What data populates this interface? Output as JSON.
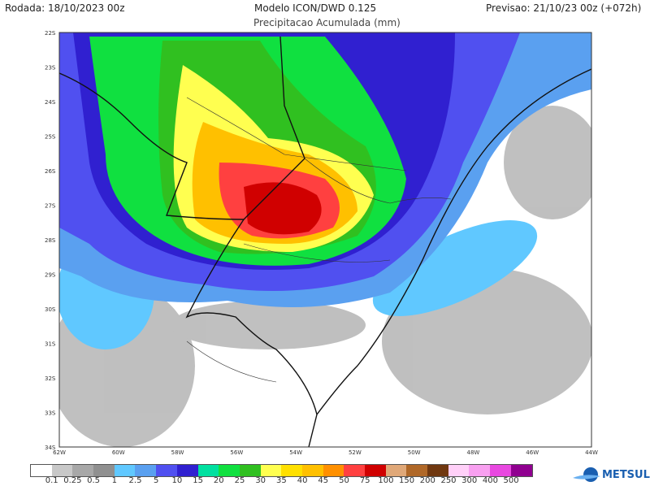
{
  "header": {
    "run": "Rodada: 18/10/2023 00z",
    "model": "Modelo ICON/DWD 0.125",
    "forecast": "Previsao: 21/10/23 00z (+072h)",
    "subtitle": "Precipitacao Acumulada (mm)"
  },
  "map": {
    "lat_ticks": [
      "22S",
      "23S",
      "24S",
      "25S",
      "26S",
      "27S",
      "28S",
      "29S",
      "30S",
      "31S",
      "32S",
      "33S",
      "34S"
    ],
    "lon_ticks": [
      "62W",
      "60W",
      "58W",
      "56W",
      "54W",
      "52W",
      "50W",
      "48W",
      "46W",
      "44W"
    ]
  },
  "colorbar": {
    "unit": "mm",
    "labels": [
      "0.1",
      "0.25",
      "0.5",
      "1",
      "2.5",
      "5",
      "10",
      "15",
      "20",
      "25",
      "30",
      "35",
      "40",
      "45",
      "50",
      "75",
      "100",
      "150",
      "200",
      "250",
      "300",
      "400",
      "500"
    ],
    "colors": [
      "#ffffff",
      "#c8c8c8",
      "#a8a8a8",
      "#909090",
      "#60c8ff",
      "#5aa0f0",
      "#5050f0",
      "#3020d0",
      "#00e0a0",
      "#10e040",
      "#30c020",
      "#ffff50",
      "#ffe000",
      "#ffc000",
      "#ff9000",
      "#ff4040",
      "#d00000",
      "#e0a878",
      "#b06828",
      "#703810",
      "#ffd0f8",
      "#f8a0f0",
      "#e848e0",
      "#900090"
    ]
  },
  "logo": {
    "text": "METSUL",
    "icon": "globe-icon"
  }
}
